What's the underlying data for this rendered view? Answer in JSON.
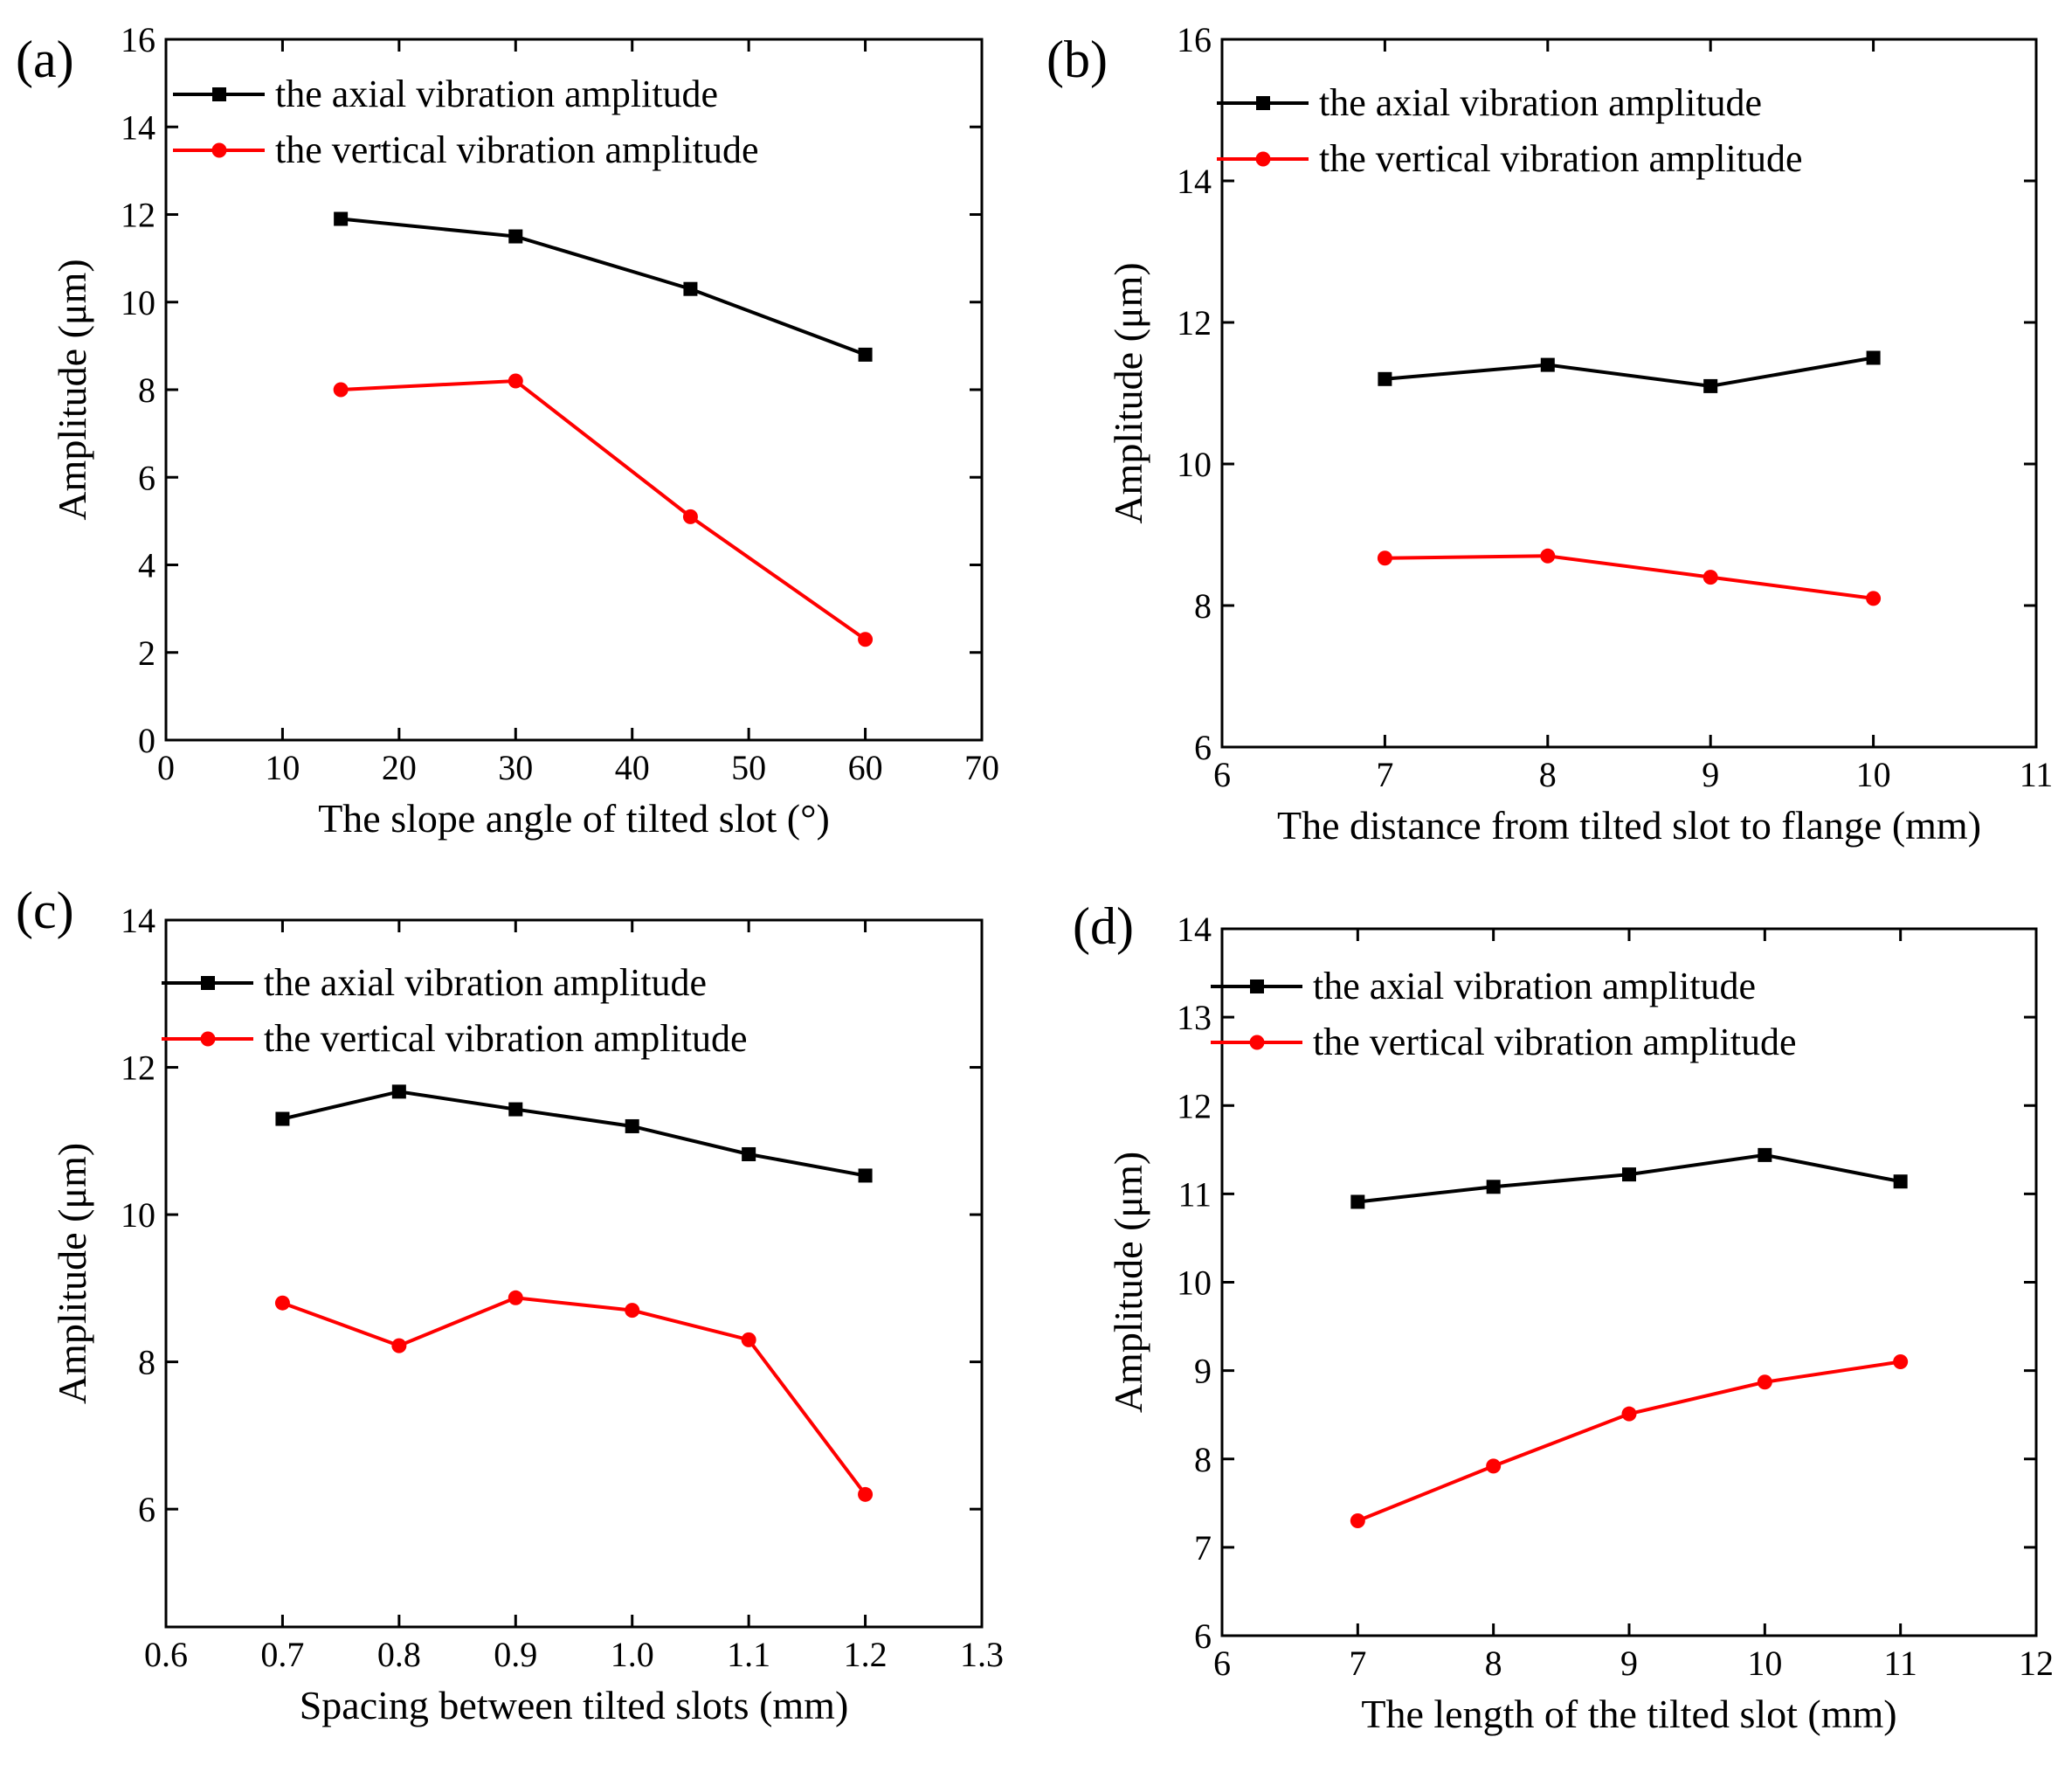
{
  "chart_data": [
    {
      "type": "line",
      "panel_label": "(a)",
      "title": "",
      "xlabel": "The slope angle of tilted slot (°)",
      "ylabel": "Amplitude (μm)",
      "xlim": [
        0,
        70
      ],
      "ylim": [
        0,
        16
      ],
      "xticks": [
        0,
        10,
        20,
        30,
        40,
        50,
        60,
        70
      ],
      "xtick_labels": [
        "0",
        "10",
        "20",
        "30",
        "40",
        "50",
        "60",
        "70"
      ],
      "yticks": [
        0,
        2,
        4,
        6,
        8,
        10,
        12,
        14,
        16
      ],
      "ytick_labels": [
        "0",
        "2",
        "4",
        "6",
        "8",
        "10",
        "12",
        "14",
        "16"
      ],
      "x": [
        15,
        30,
        45,
        60
      ],
      "series": [
        {
          "name": "the axial vibration amplitude",
          "color": "#000000",
          "marker": "square",
          "values": [
            11.9,
            11.5,
            10.3,
            8.8
          ]
        },
        {
          "name": "the vertical vibration amplitude",
          "color": "#ff0000",
          "marker": "circle",
          "values": [
            8.0,
            8.2,
            5.1,
            2.3
          ]
        }
      ],
      "grid": false,
      "legend": "top-right"
    },
    {
      "type": "line",
      "panel_label": "(b)",
      "title": "",
      "xlabel": "The distance from tilted slot to flange (mm)",
      "ylabel": "Amplitude (μm)",
      "xlim": [
        6,
        11
      ],
      "ylim": [
        6,
        16
      ],
      "xticks": [
        6,
        7,
        8,
        9,
        10,
        11
      ],
      "xtick_labels": [
        "6",
        "7",
        "8",
        "9",
        "10",
        "11"
      ],
      "yticks": [
        6,
        8,
        10,
        12,
        14,
        16
      ],
      "ytick_labels": [
        "6",
        "8",
        "10",
        "12",
        "14",
        "16"
      ],
      "x": [
        7,
        8,
        9,
        10
      ],
      "series": [
        {
          "name": "the axial vibration amplitude",
          "color": "#000000",
          "marker": "square",
          "values": [
            11.2,
            11.4,
            11.1,
            11.5
          ]
        },
        {
          "name": "the vertical vibration amplitude",
          "color": "#ff0000",
          "marker": "circle",
          "values": [
            8.67,
            8.7,
            8.4,
            8.1
          ]
        }
      ],
      "grid": false,
      "legend": "top-right"
    },
    {
      "type": "line",
      "panel_label": "(c)",
      "title": "",
      "xlabel": "Spacing between tilted slots (mm)",
      "ylabel": "Amplitude (μm)",
      "xlim": [
        0.6,
        1.3
      ],
      "ylim": [
        4.4,
        14
      ],
      "xticks": [
        0.6,
        0.7,
        0.8,
        0.9,
        1.0,
        1.1,
        1.2,
        1.3
      ],
      "xtick_labels": [
        "0.6",
        "0.7",
        "0.8",
        "0.9",
        "1.0",
        "1.1",
        "1.2",
        "1.3"
      ],
      "yticks": [
        6,
        8,
        10,
        12,
        14
      ],
      "ytick_labels": [
        "6",
        "8",
        "10",
        "12",
        "14"
      ],
      "x": [
        0.7,
        0.8,
        0.9,
        1.0,
        1.1,
        1.2
      ],
      "series": [
        {
          "name": "the axial vibration amplitude",
          "color": "#000000",
          "marker": "square",
          "values": [
            11.3,
            11.67,
            11.43,
            11.2,
            10.82,
            10.53
          ]
        },
        {
          "name": "the vertical vibration amplitude",
          "color": "#ff0000",
          "marker": "circle",
          "values": [
            8.8,
            8.22,
            8.87,
            8.7,
            8.3,
            6.2
          ]
        }
      ],
      "grid": false,
      "legend": "top-right"
    },
    {
      "type": "line",
      "panel_label": "(d)",
      "title": "",
      "xlabel": "The length of the tilted slot (mm)",
      "ylabel": "Amplitude (μm)",
      "xlim": [
        6,
        12
      ],
      "ylim": [
        6,
        14
      ],
      "xticks": [
        6,
        7,
        8,
        9,
        10,
        11,
        12
      ],
      "xtick_labels": [
        "6",
        "7",
        "8",
        "9",
        "10",
        "11",
        "12"
      ],
      "yticks": [
        6,
        7,
        8,
        9,
        10,
        11,
        12,
        13,
        14
      ],
      "ytick_labels": [
        "6",
        "7",
        "8",
        "9",
        "10",
        "11",
        "12",
        "13",
        "14"
      ],
      "x": [
        7,
        8,
        9,
        10,
        11
      ],
      "series": [
        {
          "name": "the axial vibration amplitude",
          "color": "#000000",
          "marker": "square",
          "values": [
            10.91,
            11.08,
            11.22,
            11.44,
            11.14
          ]
        },
        {
          "name": "the vertical vibration amplitude",
          "color": "#ff0000",
          "marker": "circle",
          "values": [
            7.3,
            7.92,
            8.51,
            8.87,
            9.1
          ]
        }
      ],
      "grid": false,
      "legend": "top-right"
    }
  ]
}
